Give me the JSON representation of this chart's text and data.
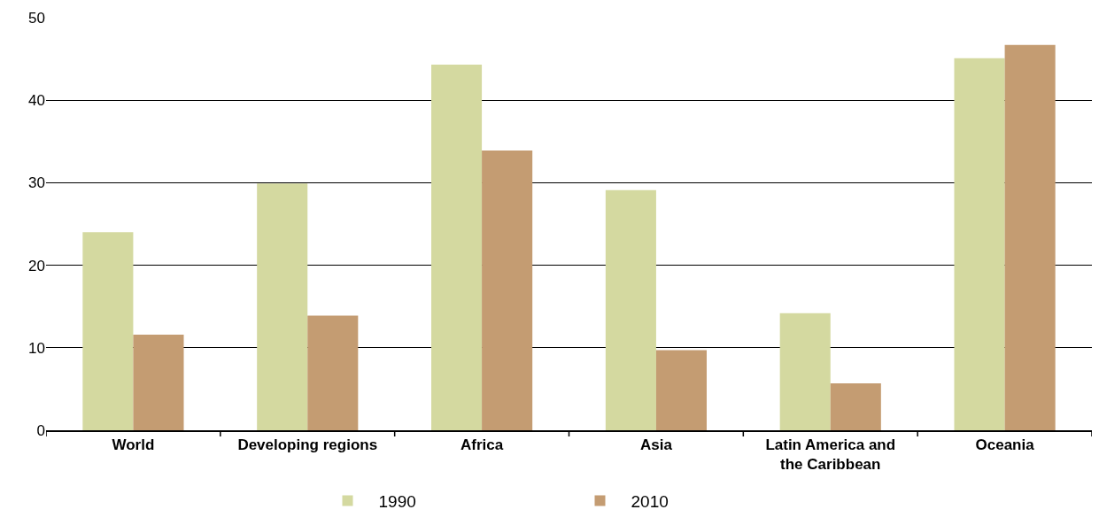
{
  "chart_data": {
    "type": "bar",
    "categories": [
      "World",
      "Developing regions",
      "Africa",
      "Asia",
      "Latin America and the Caribbean",
      "Oceania"
    ],
    "series": [
      {
        "name": "1990",
        "color": "#d4d9a0",
        "values": [
          24.0,
          29.9,
          44.3,
          29.1,
          14.2,
          45.1
        ]
      },
      {
        "name": "2010",
        "color": "#c49c72",
        "values": [
          11.6,
          13.9,
          33.9,
          9.7,
          5.7,
          46.7
        ]
      }
    ],
    "ylim": [
      0,
      50
    ],
    "yticks": [
      0,
      10,
      20,
      30,
      40,
      50
    ],
    "grid": "y",
    "legend": "bottom"
  }
}
